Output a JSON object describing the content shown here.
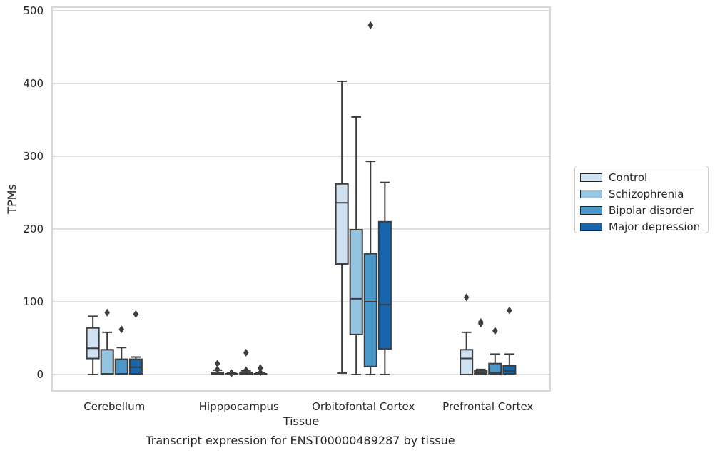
{
  "chart_data": {
    "type": "box",
    "title": "Transcript expression for ENST00000489287 by tissue",
    "xlabel": "Tissue",
    "ylabel": "TPMs",
    "ylim": [
      -22,
      505
    ],
    "yticks": [
      0,
      100,
      200,
      300,
      400,
      500
    ],
    "grid": "horizontal",
    "legend_position": "right",
    "categories": [
      "Cerebellum",
      "Hipppocampus",
      "Orbitofontal Cortex",
      "Prefrontal Cortex"
    ],
    "series": [
      {
        "name": "Control",
        "color": "#d0e1f2",
        "boxes": [
          {
            "whislo": 0,
            "q1": 22,
            "med": 36,
            "q3": 64,
            "whishi": 80,
            "fliers": []
          },
          {
            "whislo": 0,
            "q1": 0,
            "med": 1,
            "q3": 3,
            "whishi": 6,
            "fliers": [
              15,
              7
            ]
          },
          {
            "whislo": 2,
            "q1": 152,
            "med": 236,
            "q3": 262,
            "whishi": 403,
            "fliers": []
          },
          {
            "whislo": 0,
            "q1": 0,
            "med": 22,
            "q3": 34,
            "whishi": 58,
            "fliers": [
              106
            ]
          }
        ]
      },
      {
        "name": "Schizophrenia",
        "color": "#94c4df",
        "boxes": [
          {
            "whislo": 0,
            "q1": 0,
            "med": 1,
            "q3": 34,
            "whishi": 58,
            "fliers": [
              85
            ]
          },
          {
            "whislo": 0,
            "q1": 0,
            "med": 0,
            "q3": 1,
            "whishi": 2,
            "fliers": [
              2
            ]
          },
          {
            "whislo": 0,
            "q1": 55,
            "med": 104,
            "q3": 199,
            "whishi": 354,
            "fliers": []
          },
          {
            "whislo": 0,
            "q1": 1,
            "med": 3,
            "q3": 5,
            "whishi": 7,
            "fliers": [
              72,
              70
            ]
          }
        ]
      },
      {
        "name": "Bipolar disorder",
        "color": "#4a98c9",
        "boxes": [
          {
            "whislo": 0,
            "q1": 0,
            "med": 1,
            "q3": 21,
            "whishi": 37,
            "fliers": [
              62
            ]
          },
          {
            "whislo": 0,
            "q1": 0,
            "med": 1,
            "q3": 3,
            "whishi": 5,
            "fliers": [
              30,
              6
            ]
          },
          {
            "whislo": 0,
            "q1": 11,
            "med": 100,
            "q3": 166,
            "whishi": 293,
            "fliers": [
              480
            ]
          },
          {
            "whislo": 0,
            "q1": 0,
            "med": 2,
            "q3": 15,
            "whishi": 28,
            "fliers": [
              60
            ]
          }
        ]
      },
      {
        "name": "Major depression",
        "color": "#1764ab",
        "boxes": [
          {
            "whislo": 0,
            "q1": 1,
            "med": 10,
            "q3": 21,
            "whishi": 24,
            "fliers": [
              83
            ]
          },
          {
            "whislo": 0,
            "q1": 0,
            "med": 0,
            "q3": 1,
            "whishi": 2,
            "fliers": [
              9,
              3
            ]
          },
          {
            "whislo": 0,
            "q1": 35,
            "med": 96,
            "q3": 210,
            "whishi": 264,
            "fliers": []
          },
          {
            "whislo": 0,
            "q1": 1,
            "med": 5,
            "q3": 12,
            "whishi": 28,
            "fliers": [
              88
            ]
          }
        ]
      }
    ]
  }
}
